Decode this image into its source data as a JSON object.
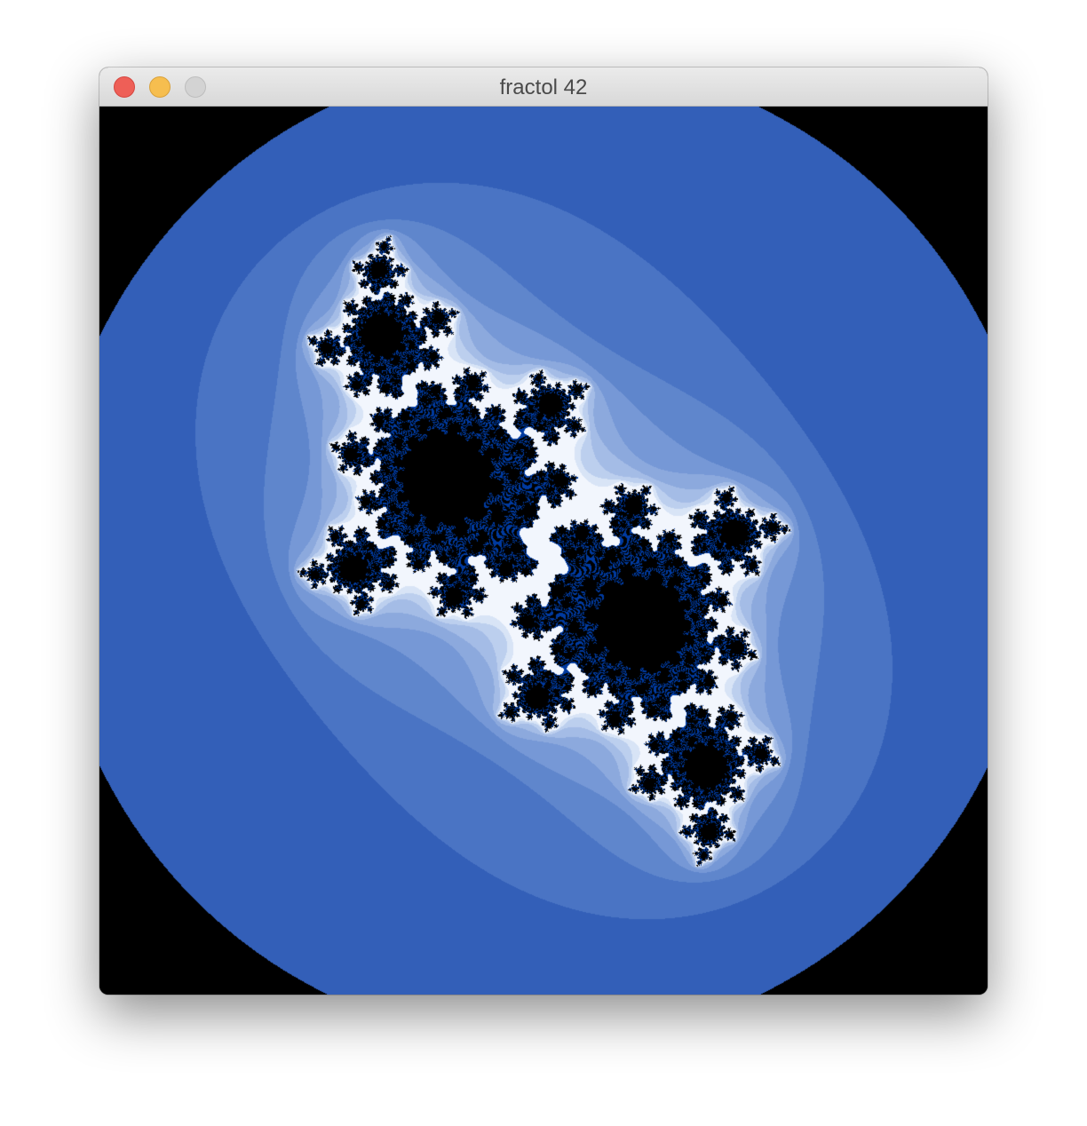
{
  "window": {
    "title": "fractol 42"
  },
  "fractal": {
    "type": "julia",
    "palette": [
      "#335fb8",
      "#4a74c4",
      "#5f86cc",
      "#7698d6",
      "#8ca9dd",
      "#a4bce6",
      "#bccfee",
      "#d8e4f6",
      "#f2f6fd"
    ],
    "inner_color": "#000000",
    "deep_color": "#003aa0"
  }
}
